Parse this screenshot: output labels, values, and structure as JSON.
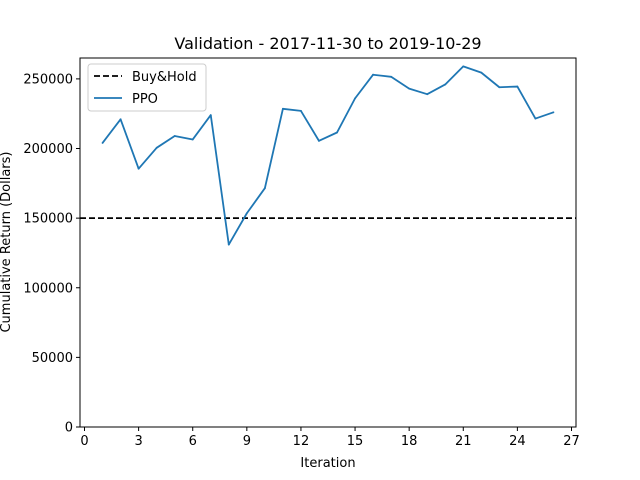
{
  "chart_data": {
    "type": "line",
    "title": "Validation - 2017-11-30 to 2019-10-29",
    "xlabel": "Iteration",
    "ylabel": "Cumulative Return (Dollars)",
    "xlim": [
      -0.25,
      27.25
    ],
    "ylim": [
      0,
      265000
    ],
    "xticks": [
      0,
      3,
      6,
      9,
      12,
      15,
      18,
      21,
      24,
      27
    ],
    "yticks": [
      0,
      50000,
      100000,
      150000,
      200000,
      250000
    ],
    "grid": false,
    "legend_placement": "top-left",
    "series": [
      {
        "name": "Buy&Hold",
        "style": "dashed",
        "color": "#000000",
        "type": "hline",
        "value": 150000
      },
      {
        "name": "PPO",
        "style": "solid",
        "color": "#1f77b4",
        "x": [
          1,
          2,
          3,
          4,
          5,
          6,
          7,
          8,
          9,
          10,
          11,
          12,
          13,
          14,
          15,
          16,
          17,
          18,
          19,
          20,
          21,
          22,
          23,
          24,
          25,
          26
        ],
        "y": [
          204000,
          221000,
          185500,
          200500,
          209000,
          206500,
          224000,
          131000,
          153500,
          171500,
          228500,
          227000,
          205500,
          211500,
          236000,
          253000,
          251500,
          243000,
          239000,
          246000,
          259000,
          254500,
          244000,
          244500,
          221500,
          226000
        ]
      }
    ]
  }
}
